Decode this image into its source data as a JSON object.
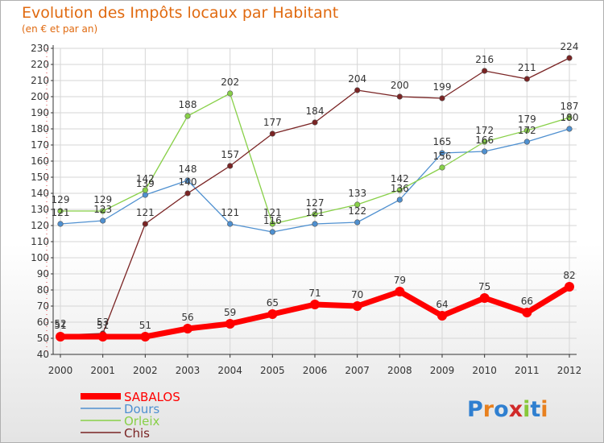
{
  "chart_data": {
    "type": "line",
    "title": "Evolution des Impôts locaux par Habitant",
    "subtitle": "(en € et par an)",
    "x": [
      "2000",
      "2001",
      "2002",
      "2003",
      "2004",
      "2005",
      "2006",
      "2007",
      "2008",
      "2009",
      "2010",
      "2011",
      "2012"
    ],
    "ylim": [
      40,
      230
    ],
    "ytick_step": 10,
    "grid": true,
    "legend_position": "bottom-left",
    "series": [
      {
        "name": "SABALOS",
        "color": "#ff0000",
        "values": [
          51,
          51,
          51,
          56,
          59,
          65,
          71,
          70,
          79,
          64,
          75,
          66,
          82
        ],
        "labels": [
          "51",
          "51",
          "51",
          "56",
          "59",
          "65",
          "71",
          "70",
          "79",
          "64",
          "75",
          "66",
          "82"
        ]
      },
      {
        "name": "Dours",
        "color": "#4f90d0",
        "values": [
          121,
          123,
          139,
          148,
          121,
          116,
          121,
          122,
          136,
          165,
          166,
          172,
          180
        ],
        "labels": [
          "121",
          "123",
          "139",
          "148",
          "121",
          "116",
          "121",
          "122",
          "136",
          "165",
          "166",
          "172",
          "180"
        ]
      },
      {
        "name": "Orleix",
        "color": "#88d048",
        "values": [
          129,
          129,
          142,
          188,
          202,
          121,
          127,
          133,
          142,
          156,
          172,
          179,
          187
        ],
        "labels": [
          "129",
          "129",
          "142",
          "188",
          "202",
          "121",
          "127",
          "133",
          "142",
          "156",
          "172",
          "179",
          "187"
        ]
      },
      {
        "name": "Chis",
        "color": "#7a2424",
        "values": [
          52,
          53,
          121,
          140,
          157,
          177,
          184,
          204,
          200,
          199,
          216,
          211,
          224
        ],
        "labels": [
          "52",
          "53",
          "121",
          "140",
          "157",
          "177",
          "184",
          "204",
          "200",
          "199",
          "216",
          "211",
          "224"
        ]
      }
    ]
  },
  "logo": {
    "text": "Proxiti",
    "letters": [
      "P",
      "r",
      "o",
      "x",
      "i",
      "t",
      "i"
    ],
    "colors": [
      "#2f7fd0",
      "#e8801e",
      "#2f7fd0",
      "#d02a2a",
      "#88c83a",
      "#2f7fd0",
      "#e8801e"
    ]
  }
}
